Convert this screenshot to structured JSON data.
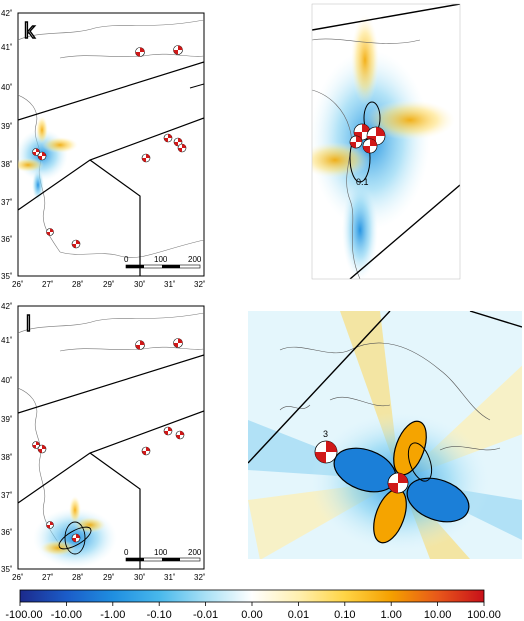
{
  "panels": [
    {
      "id": "k",
      "letter": "k",
      "lat_ticks": [
        "42˚",
        "41˚",
        "40˚",
        "39˚",
        "38˚",
        "37˚",
        "36˚",
        "35˚"
      ],
      "lon_ticks": [
        "26˚",
        "27˚",
        "28˚",
        "29˚",
        "30˚",
        "31˚",
        "32˚"
      ],
      "scale_labels": [
        "0",
        "100",
        "200"
      ],
      "inset_contour_label": "0.1"
    },
    {
      "id": "l",
      "letter": "l",
      "lat_ticks": [
        "42˚",
        "41˚",
        "40˚",
        "39˚",
        "38˚",
        "37˚",
        "36˚",
        "35˚"
      ],
      "lon_ticks": [
        "26˚",
        "27˚",
        "28˚",
        "29˚",
        "30˚",
        "31˚",
        "32˚"
      ],
      "scale_labels": [
        "0",
        "100",
        "200"
      ],
      "inset_event_label": "3"
    }
  ],
  "colorbar": {
    "tick_labels": [
      "-100.00",
      "-10.00",
      "-1.00",
      "-0.10",
      "-0.01",
      "0.00",
      "0.01",
      "0.10",
      "1.00",
      "10.00",
      "100.00"
    ],
    "colors": [
      "#1c2a8c",
      "#1b6fd0",
      "#2aa8e8",
      "#7dd0f0",
      "#d8f1fa",
      "#ffffff",
      "#fff3c8",
      "#ffd75a",
      "#f5a400",
      "#e85a10",
      "#c8101a"
    ]
  },
  "map_colors": {
    "fault_line": "#000000",
    "coast": "#555555",
    "beach_red": "#d01818",
    "beach_white": "#ffffff"
  }
}
